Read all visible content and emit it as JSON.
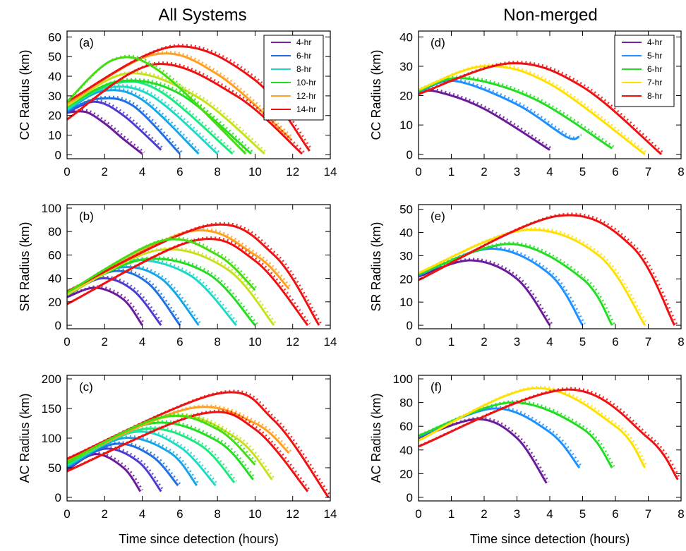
{
  "column_titles": [
    "All Systems",
    "Non-merged"
  ],
  "chart_data": [
    {
      "type": "line",
      "panel": "(a)",
      "column": 0,
      "row": 0,
      "xlim": [
        0,
        14
      ],
      "ylim": [
        -2,
        63
      ],
      "xticks": [
        0,
        2,
        4,
        6,
        8,
        10,
        12,
        14
      ],
      "yticks": [
        0,
        10,
        20,
        30,
        40,
        50,
        60
      ],
      "ylabel": "CC Radius (km)",
      "xlabel": "",
      "legend": {
        "placement": "top-right",
        "entries": [
          {
            "label": "4-hr",
            "color": "#7b1fa2"
          },
          {
            "label": "6-hr",
            "color": "#1e6fe0"
          },
          {
            "label": "8-hr",
            "color": "#20d8c8"
          },
          {
            "label": "10-hr",
            "color": "#22dd22"
          },
          {
            "label": "12-hr",
            "color": "#ffa020"
          },
          {
            "label": "14-hr",
            "color": "#ee1111"
          }
        ]
      },
      "series": [
        {
          "duration": 4,
          "color": "#6a1b9a",
          "x": [
            0,
            1,
            2,
            3,
            4
          ],
          "y": [
            21.5,
            21.8,
            16,
            8,
            0.5
          ]
        },
        {
          "duration": 5,
          "color": "#4b3bd0",
          "x": [
            0,
            1.5,
            3,
            5
          ],
          "y": [
            21.5,
            27,
            20,
            2.5
          ]
        },
        {
          "duration": 6,
          "color": "#1e6fe0",
          "x": [
            0,
            1.6,
            3.5,
            6
          ],
          "y": [
            22,
            28.5,
            25,
            0.5
          ]
        },
        {
          "duration": 7,
          "color": "#14a6e8",
          "x": [
            0,
            1.9,
            4,
            7
          ],
          "y": [
            22.5,
            32.5,
            28,
            0.5
          ]
        },
        {
          "duration": 8,
          "color": "#20d8c8",
          "x": [
            0,
            2,
            4.5,
            8
          ],
          "y": [
            23,
            34,
            30,
            0.5
          ]
        },
        {
          "duration": 9,
          "color": "#1ee880",
          "x": [
            0,
            2.6,
            5,
            8.8
          ],
          "y": [
            24,
            36.5,
            32,
            0.5
          ]
        },
        {
          "duration": 10,
          "color": "#22dd22",
          "x": [
            0,
            2.8,
            6,
            9.8
          ],
          "y": [
            24.5,
            37.5,
            31,
            0.5
          ]
        },
        {
          "duration": 11,
          "color": "#c8e020",
          "x": [
            0,
            3.3,
            7,
            10.5
          ],
          "y": [
            25,
            41.5,
            29,
            0.5
          ]
        },
        {
          "duration": 12,
          "color": "#ffa020",
          "x": [
            0,
            4.6,
            8,
            11.9
          ],
          "y": [
            26,
            51,
            41,
            8
          ]
        },
        {
          "duration": 13,
          "color": "#ee1111",
          "x": [
            0,
            4.6,
            9,
            12.5
          ],
          "y": [
            18,
            46,
            30,
            0.5
          ]
        },
        {
          "duration": 14,
          "color": "#ee1111",
          "x": [
            0,
            5.6,
            10,
            12.9
          ],
          "y": [
            27,
            55,
            38,
            2
          ]
        },
        {
          "duration": 10,
          "color": "#44dd11",
          "x": [
            0,
            2.5,
            5,
            9.5
          ],
          "y": [
            27,
            48.5,
            42,
            0.5
          ]
        }
      ]
    },
    {
      "type": "line",
      "panel": "(b)",
      "column": 0,
      "row": 1,
      "xlim": [
        0,
        14
      ],
      "ylim": [
        -3,
        103
      ],
      "xticks": [
        0,
        2,
        4,
        6,
        8,
        10,
        12,
        14
      ],
      "yticks": [
        0,
        20,
        40,
        60,
        80,
        100
      ],
      "ylabel": "SR Radius (km)",
      "xlabel": "",
      "series": [
        {
          "duration": 4,
          "color": "#6a1b9a",
          "x": [
            0,
            1.5,
            3,
            4
          ],
          "y": [
            24,
            32,
            22,
            0
          ]
        },
        {
          "duration": 5,
          "color": "#4b3bd0",
          "x": [
            0,
            1.8,
            3.5,
            5
          ],
          "y": [
            25,
            40,
            30,
            0
          ]
        },
        {
          "duration": 6,
          "color": "#1e6fe0",
          "x": [
            0,
            2.4,
            4.3,
            6
          ],
          "y": [
            26,
            46,
            36,
            0
          ]
        },
        {
          "duration": 7,
          "color": "#14a6e8",
          "x": [
            0,
            2.7,
            5,
            7
          ],
          "y": [
            26,
            49,
            40,
            0
          ]
        },
        {
          "duration": 9,
          "color": "#20d8c8",
          "x": [
            0,
            3.2,
            6.5,
            9
          ],
          "y": [
            27,
            55,
            43,
            0
          ]
        },
        {
          "duration": 10,
          "color": "#22dd22",
          "x": [
            0,
            4,
            7.5,
            10
          ],
          "y": [
            27,
            56,
            44,
            0
          ]
        },
        {
          "duration": 11,
          "color": "#c8e020",
          "x": [
            0,
            4.8,
            8.5,
            11
          ],
          "y": [
            26,
            64,
            48,
            0
          ]
        },
        {
          "duration": 12,
          "color": "#ffa020",
          "x": [
            0,
            6.5,
            10,
            11.8
          ],
          "y": [
            28,
            80,
            60,
            31
          ]
        },
        {
          "duration": 13,
          "color": "#ee1111",
          "x": [
            0,
            6.7,
            10,
            12.8
          ],
          "y": [
            18,
            72,
            55,
            0
          ]
        },
        {
          "duration": 14,
          "color": "#ee1111",
          "x": [
            0,
            7.5,
            11,
            13.4
          ],
          "y": [
            29,
            85,
            60,
            0
          ]
        },
        {
          "duration": 10,
          "color": "#44dd11",
          "x": [
            0,
            5,
            8,
            10
          ],
          "y": [
            28,
            72,
            60,
            30
          ]
        }
      ]
    },
    {
      "type": "line",
      "panel": "(c)",
      "column": 0,
      "row": 2,
      "xlim": [
        0,
        14
      ],
      "ylim": [
        -6,
        206
      ],
      "xticks": [
        0,
        2,
        4,
        6,
        8,
        10,
        12,
        14
      ],
      "yticks": [
        0,
        50,
        100,
        150,
        200
      ],
      "ylabel": "AC Radius (km)",
      "xlabel": "Time since detection (hours)",
      "series": [
        {
          "duration": 4,
          "color": "#6a1b9a",
          "x": [
            0,
            1.5,
            3,
            3.9
          ],
          "y": [
            46,
            73,
            50,
            10
          ]
        },
        {
          "duration": 5,
          "color": "#4b3bd0",
          "x": [
            0,
            2,
            3.8,
            5
          ],
          "y": [
            48,
            82,
            60,
            10
          ]
        },
        {
          "duration": 6,
          "color": "#1e6fe0",
          "x": [
            0,
            2.5,
            4.5,
            5.9
          ],
          "y": [
            50,
            90,
            70,
            20
          ]
        },
        {
          "duration": 7,
          "color": "#14a6e8",
          "x": [
            0,
            3,
            5.5,
            6.9
          ],
          "y": [
            52,
            100,
            75,
            20
          ]
        },
        {
          "duration": 8,
          "color": "#20d8c8",
          "x": [
            0,
            3.5,
            6,
            7.9
          ],
          "y": [
            54,
            110,
            85,
            20
          ]
        },
        {
          "duration": 9,
          "color": "#1ee880",
          "x": [
            0,
            4,
            7,
            8.9
          ],
          "y": [
            56,
            115,
            90,
            25
          ]
        },
        {
          "duration": 10,
          "color": "#22dd22",
          "x": [
            0,
            4.5,
            8,
            9.9
          ],
          "y": [
            58,
            125,
            95,
            30
          ]
        },
        {
          "duration": 11,
          "color": "#c8e020",
          "x": [
            0,
            5.5,
            9,
            10.9
          ],
          "y": [
            60,
            137,
            100,
            30
          ]
        },
        {
          "duration": 12,
          "color": "#ffa020",
          "x": [
            0,
            6.5,
            10,
            11.8
          ],
          "y": [
            62,
            150,
            125,
            75
          ]
        },
        {
          "duration": 13,
          "color": "#ee1111",
          "x": [
            0,
            7,
            10,
            12.8
          ],
          "y": [
            44,
            140,
            115,
            10
          ]
        },
        {
          "duration": 14,
          "color": "#ee1111",
          "x": [
            0,
            8,
            11,
            13.9
          ],
          "y": [
            65,
            175,
            130,
            0
          ]
        },
        {
          "duration": 10,
          "color": "#44dd11",
          "x": [
            0,
            5,
            8,
            10
          ],
          "y": [
            60,
            135,
            115,
            55
          ]
        }
      ]
    },
    {
      "type": "line",
      "panel": "(d)",
      "column": 1,
      "row": 0,
      "xlim": [
        0,
        8
      ],
      "ylim": [
        -1.5,
        42
      ],
      "xticks": [
        0,
        1,
        2,
        3,
        4,
        5,
        6,
        7,
        8
      ],
      "yticks": [
        0,
        10,
        20,
        30,
        40
      ],
      "ylabel": "CC Radius (km)",
      "xlabel": "",
      "legend": {
        "placement": "top-right",
        "entries": [
          {
            "label": "4-hr",
            "color": "#7b1fa2"
          },
          {
            "label": "5-hr",
            "color": "#1e90ff"
          },
          {
            "label": "6-hr",
            "color": "#22dd22"
          },
          {
            "label": "7-hr",
            "color": "#ffe000"
          },
          {
            "label": "8-hr",
            "color": "#ee1111"
          }
        ]
      },
      "series": [
        {
          "duration": 4,
          "color": "#6a1b9a",
          "x": [
            0,
            0.5,
            2,
            4
          ],
          "y": [
            20.5,
            21.5,
            15.5,
            1.5
          ]
        },
        {
          "duration": 5,
          "color": "#1e90ff",
          "x": [
            0,
            1.1,
            3,
            4.5,
            4.9
          ],
          "y": [
            21,
            25,
            17,
            6,
            6
          ]
        },
        {
          "duration": 6,
          "color": "#22dd22",
          "x": [
            0,
            1.3,
            3.5,
            5.9
          ],
          "y": [
            21.5,
            26,
            19,
            2
          ]
        },
        {
          "duration": 7,
          "color": "#ffe000",
          "x": [
            0,
            2,
            4,
            6.9
          ],
          "y": [
            22,
            30,
            24,
            0
          ]
        },
        {
          "duration": 8,
          "color": "#ee1111",
          "x": [
            0,
            2.8,
            5,
            7.4
          ],
          "y": [
            20.5,
            31,
            23,
            0
          ]
        }
      ]
    },
    {
      "type": "line",
      "panel": "(e)",
      "column": 1,
      "row": 1,
      "xlim": [
        0,
        8
      ],
      "ylim": [
        -1.5,
        52
      ],
      "xticks": [
        0,
        1,
        2,
        3,
        4,
        5,
        6,
        7,
        8
      ],
      "yticks": [
        0,
        10,
        20,
        30,
        40,
        50
      ],
      "ylabel": "SR Radius (km)",
      "xlabel": "",
      "series": [
        {
          "duration": 4,
          "color": "#6a1b9a",
          "x": [
            0,
            1.6,
            3,
            4
          ],
          "y": [
            21,
            28,
            20,
            0
          ]
        },
        {
          "duration": 5,
          "color": "#1e90ff",
          "x": [
            0,
            2.2,
            4,
            5
          ],
          "y": [
            21.5,
            33,
            22,
            0
          ]
        },
        {
          "duration": 6,
          "color": "#22dd22",
          "x": [
            0,
            2.8,
            5,
            5.9
          ],
          "y": [
            22,
            35,
            20,
            0
          ]
        },
        {
          "duration": 7,
          "color": "#ffe000",
          "x": [
            0,
            3.2,
            5.5,
            6.9
          ],
          "y": [
            22.5,
            41,
            30,
            0
          ]
        },
        {
          "duration": 8,
          "color": "#ee1111",
          "x": [
            0,
            4.2,
            6.5,
            7.8
          ],
          "y": [
            19.5,
            47,
            34,
            0
          ]
        }
      ]
    },
    {
      "type": "line",
      "panel": "(f)",
      "column": 1,
      "row": 2,
      "xlim": [
        0,
        8
      ],
      "ylim": [
        -3,
        103
      ],
      "xticks": [
        0,
        1,
        2,
        3,
        4,
        5,
        6,
        7,
        8
      ],
      "yticks": [
        0,
        20,
        40,
        60,
        80,
        100
      ],
      "ylabel": "AC Radius (km)",
      "xlabel": "Time since detection (hours)",
      "series": [
        {
          "duration": 4,
          "color": "#6a1b9a",
          "x": [
            0,
            1.8,
            3,
            3.9
          ],
          "y": [
            50,
            66,
            50,
            12
          ]
        },
        {
          "duration": 5,
          "color": "#1e90ff",
          "x": [
            0,
            2.3,
            4,
            4.9
          ],
          "y": [
            51,
            75,
            55,
            25
          ]
        },
        {
          "duration": 6,
          "color": "#22dd22",
          "x": [
            0,
            2.8,
            5,
            5.9
          ],
          "y": [
            52,
            80,
            58,
            25
          ]
        },
        {
          "duration": 7,
          "color": "#ffe000",
          "x": [
            0,
            3.5,
            6,
            6.9
          ],
          "y": [
            48,
            92,
            60,
            25
          ]
        },
        {
          "duration": 8,
          "color": "#ee1111",
          "x": [
            0,
            4.5,
            7,
            7.9
          ],
          "y": [
            43,
            91,
            50,
            15
          ]
        }
      ]
    }
  ]
}
